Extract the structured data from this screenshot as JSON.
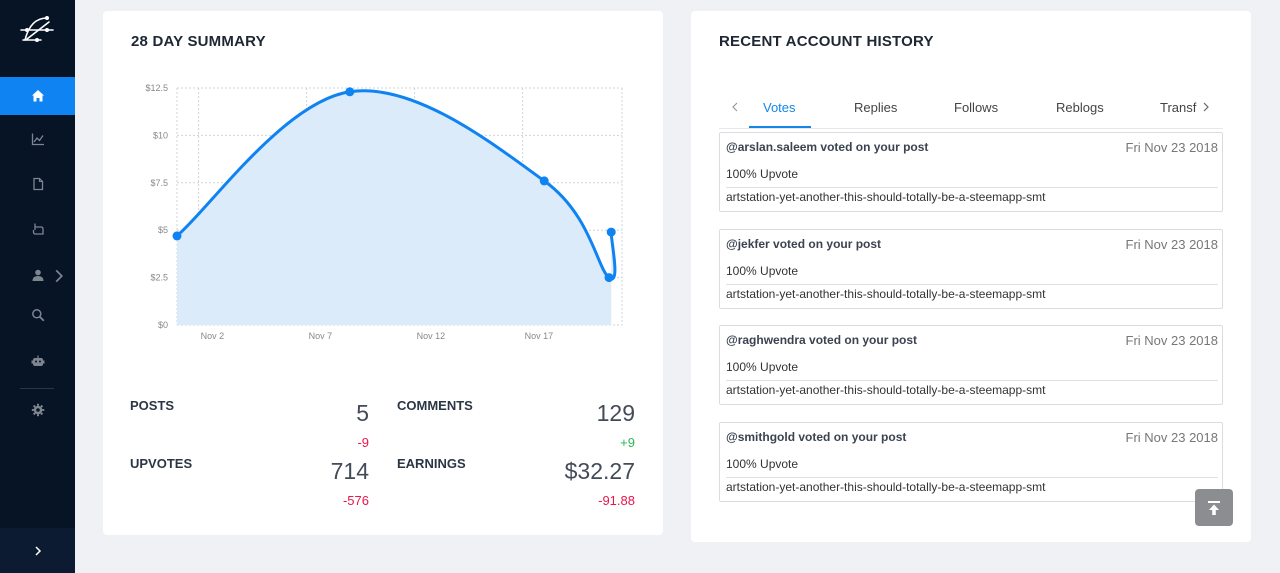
{
  "sidebar": {
    "items": [
      {
        "icon": "home-icon",
        "active": true
      },
      {
        "icon": "chart-icon",
        "active": false
      },
      {
        "icon": "document-icon",
        "active": false
      },
      {
        "icon": "hand-icon",
        "active": false
      },
      {
        "icon": "user-icon",
        "active": false
      },
      {
        "icon": "search-icon",
        "active": false
      },
      {
        "icon": "robot-icon",
        "active": false
      },
      {
        "icon": "gear-icon",
        "active": false
      }
    ],
    "collapse_icon": "chevron-right-icon"
  },
  "summary": {
    "title": "28 DAY SUMMARY",
    "stats": {
      "posts": {
        "label": "POSTS",
        "value": "5",
        "delta": "-9"
      },
      "comments": {
        "label": "COMMENTS",
        "value": "129",
        "delta": "+9"
      },
      "upvotes": {
        "label": "UPVOTES",
        "value": "714",
        "delta": "-576"
      },
      "earnings": {
        "label": "EARNINGS",
        "value": "$32.27",
        "delta": "-91.88"
      }
    }
  },
  "chart_data": {
    "type": "area",
    "x_tick_labels": [
      "Nov 2",
      "Nov 7",
      "Nov 12",
      "Nov 17"
    ],
    "y_tick_labels": [
      "$0",
      "$2.5",
      "$5",
      "$7.5",
      "$10",
      "$12.5"
    ],
    "ylim": [
      0,
      12.5
    ],
    "points": [
      {
        "x": "Nov 1",
        "y": 4.7
      },
      {
        "x": "Nov 9",
        "y": 12.3
      },
      {
        "x": "Nov 18",
        "y": 7.6
      },
      {
        "x": "Nov 21",
        "y": 2.5
      },
      {
        "x": "Nov 21",
        "y": 4.9
      }
    ],
    "grid": true,
    "line_color": "#0f83f2",
    "fill_color": "#dcebf9"
  },
  "history": {
    "title": "RECENT ACCOUNT HISTORY",
    "tabs": [
      "Votes",
      "Replies",
      "Follows",
      "Reblogs",
      "Transf"
    ],
    "active_tab": 0,
    "items": [
      {
        "head": "@arslan.saleem voted on your post",
        "date": "Fri Nov 23 2018",
        "vote": "100% Upvote",
        "link": "artstation-yet-another-this-should-totally-be-a-steemapp-smt"
      },
      {
        "head": "@jekfer voted on your post",
        "date": "Fri Nov 23 2018",
        "vote": "100% Upvote",
        "link": "artstation-yet-another-this-should-totally-be-a-steemapp-smt"
      },
      {
        "head": "@raghwendra voted on your post",
        "date": "Fri Nov 23 2018",
        "vote": "100% Upvote",
        "link": "artstation-yet-another-this-should-totally-be-a-steemapp-smt"
      },
      {
        "head": "@smithgold voted on your post",
        "date": "Fri Nov 23 2018",
        "vote": "100% Upvote",
        "link": "artstation-yet-another-this-should-totally-be-a-steemapp-smt"
      }
    ]
  },
  "scroll_top_icon": "arrow-to-top-icon"
}
